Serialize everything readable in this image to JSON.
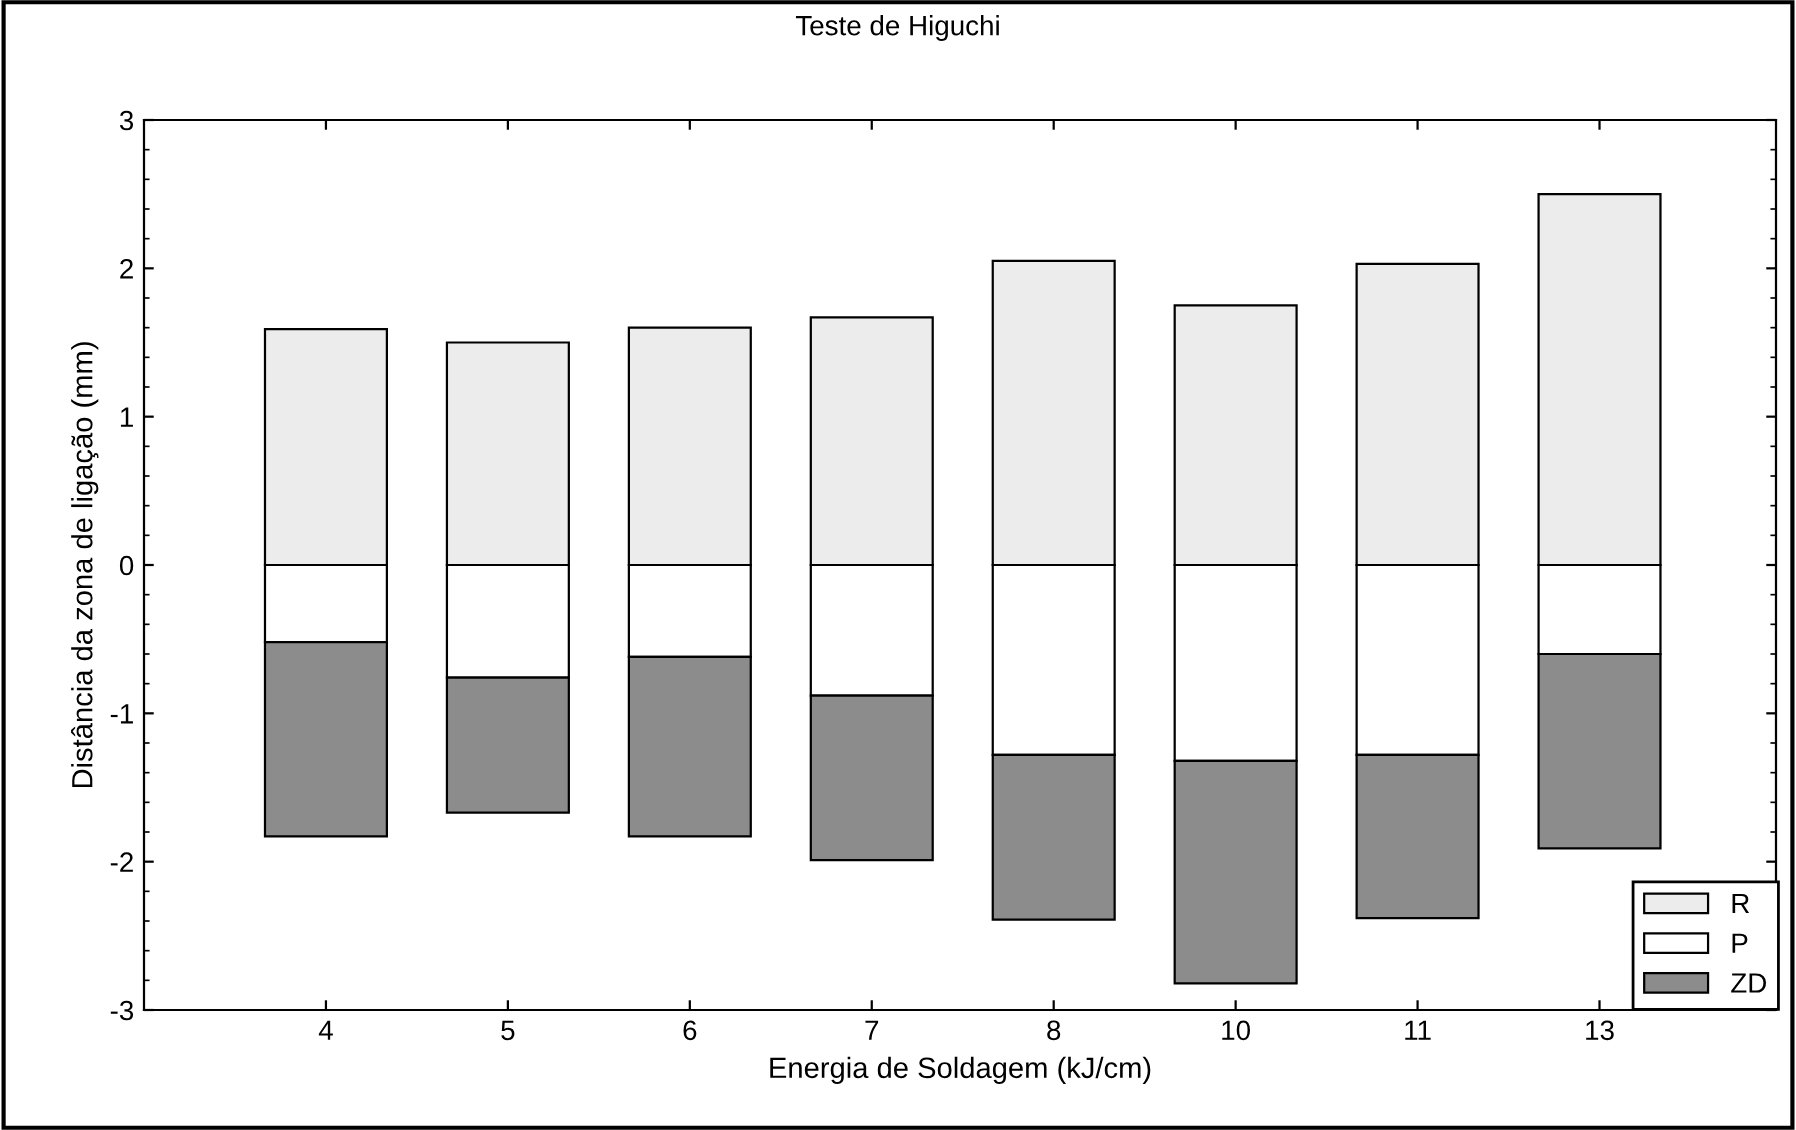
{
  "chart_data": {
    "type": "bar",
    "title": "Teste de Higuchi",
    "xlabel": "Energia de Soldagem (kJ/cm)",
    "ylabel": "Distância da zona de ligação (mm)",
    "categories": [
      "4",
      "5",
      "6",
      "7",
      "8",
      "10",
      "11",
      "13"
    ],
    "stacked": true,
    "series": [
      {
        "name": "R",
        "color": "#ececec",
        "values": [
          1.59,
          1.5,
          1.6,
          1.67,
          2.05,
          1.75,
          2.03,
          2.5
        ]
      },
      {
        "name": "P",
        "color": "#ffffff",
        "values": [
          -0.52,
          -0.76,
          -0.62,
          -0.88,
          -1.28,
          -1.32,
          -1.28,
          -0.6
        ]
      },
      {
        "name": "ZD",
        "color": "#8c8c8c",
        "values": [
          -1.31,
          -0.91,
          -1.21,
          -1.11,
          -1.11,
          -1.5,
          -1.1,
          -1.31
        ]
      }
    ],
    "ylim": [
      -3,
      3
    ],
    "yticks": [
      -3,
      -2,
      -1,
      0,
      1,
      2,
      3
    ],
    "grid": false,
    "legend": "bottom right"
  }
}
